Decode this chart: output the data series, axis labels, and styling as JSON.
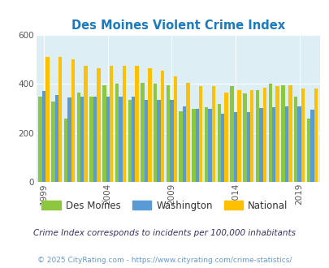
{
  "title": "Des Moines Violent Crime Index",
  "years": [
    1999,
    2000,
    2001,
    2002,
    2003,
    2004,
    2005,
    2006,
    2007,
    2008,
    2009,
    2010,
    2011,
    2012,
    2013,
    2014,
    2015,
    2016,
    2017,
    2018,
    2019,
    2020
  ],
  "des_moines": [
    350,
    330,
    260,
    365,
    350,
    395,
    400,
    335,
    405,
    400,
    395,
    290,
    300,
    305,
    320,
    390,
    360,
    375,
    400,
    395,
    350,
    260
  ],
  "washington": [
    370,
    355,
    345,
    350,
    350,
    350,
    350,
    350,
    335,
    335,
    335,
    310,
    300,
    300,
    278,
    285,
    285,
    303,
    305,
    310,
    310,
    295
  ],
  "national": [
    510,
    510,
    500,
    475,
    465,
    475,
    475,
    475,
    465,
    455,
    430,
    405,
    390,
    390,
    365,
    375,
    375,
    385,
    390,
    395,
    380,
    380
  ],
  "bar_colors": [
    "#8dc63f",
    "#5b9bd5",
    "#ffc000"
  ],
  "legend_labels": [
    "Des Moines",
    "Washington",
    "National"
  ],
  "bg_color": "#ddeef5",
  "ylim": [
    0,
    600
  ],
  "yticks": [
    0,
    200,
    400,
    600
  ],
  "xlabel_tick_years": [
    1999,
    2004,
    2009,
    2014,
    2019
  ],
  "subtitle": "Crime Index corresponds to incidents per 100,000 inhabitants",
  "footer": "© 2025 CityRating.com - https://www.cityrating.com/crime-statistics/",
  "title_color": "#1a7bbf",
  "subtitle_color": "#333366",
  "footer_color": "#6699cc"
}
